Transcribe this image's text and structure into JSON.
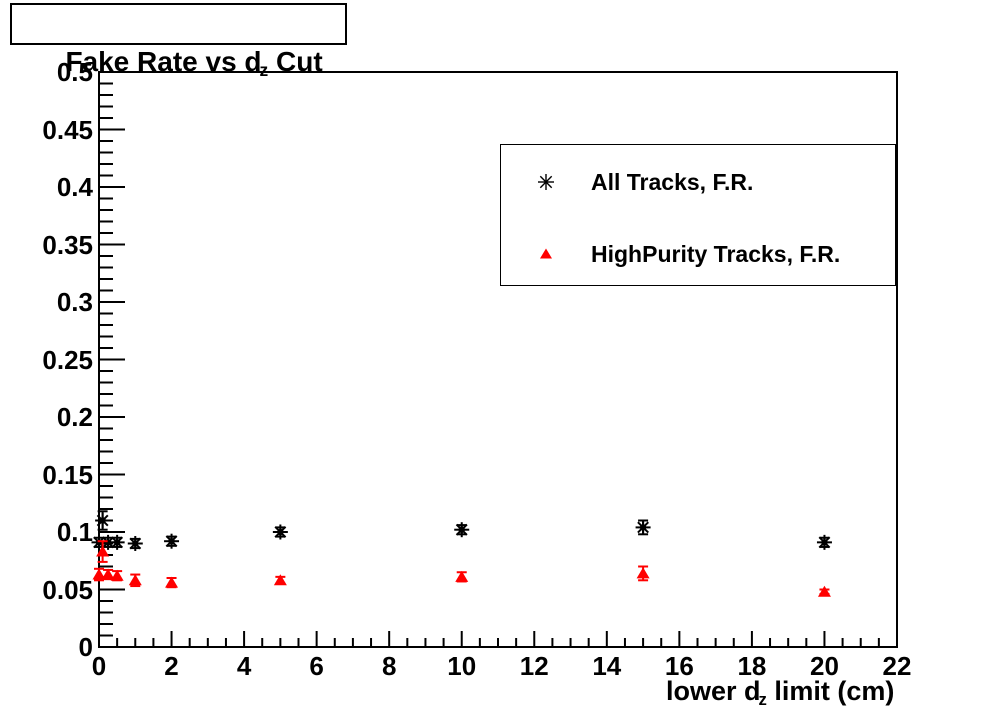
{
  "title": {
    "prefix": "Fake Rate vs d",
    "subscript": "z",
    "suffix": " Cut"
  },
  "axes": {
    "xlabel": {
      "prefix": "lower d",
      "subscript": "z",
      "suffix": " limit (cm)"
    },
    "x_ticks": [
      "0",
      "2",
      "4",
      "6",
      "8",
      "10",
      "12",
      "14",
      "16",
      "18",
      "20",
      "22"
    ],
    "y_ticks": [
      "0",
      "0.05",
      "0.1",
      "0.15",
      "0.2",
      "0.25",
      "0.3",
      "0.35",
      "0.4",
      "0.45",
      "0.5"
    ]
  },
  "legend": {
    "entries": [
      {
        "marker_icon": "asterisk-marker-icon",
        "color": "#000000",
        "label": "All Tracks, F.R."
      },
      {
        "marker_icon": "triangle-marker-icon",
        "color": "#ff0000",
        "label": "HighPurity Tracks, F.R."
      }
    ]
  },
  "colors": {
    "all_tracks": "#000000",
    "high_purity_tracks": "#ff0000",
    "frame": "#000000",
    "background": "#ffffff"
  },
  "chart_data": {
    "type": "scatter",
    "title": "Fake Rate vs d_z Cut",
    "xlabel": "lower d_z limit (cm)",
    "ylabel": "",
    "xlim": [
      0,
      22
    ],
    "ylim": [
      0,
      0.5
    ],
    "x_major_tick_step": 2,
    "x_minor_tick_step": 0.5,
    "y_major_tick_step": 0.05,
    "y_minor_tick_step": 0.01,
    "grid": false,
    "legend_position": "upper-right",
    "series": [
      {
        "name": "All Tracks, F.R.",
        "marker": "asterisk",
        "color": "#000000",
        "x": [
          0,
          0.1,
          0.25,
          0.5,
          1,
          2,
          5,
          10,
          15,
          20
        ],
        "y": [
          0.091,
          0.11,
          0.091,
          0.091,
          0.09,
          0.092,
          0.1,
          0.102,
          0.104,
          0.091
        ],
        "yerr": [
          0.004,
          0.008,
          0.004,
          0.004,
          0.004,
          0.004,
          0.004,
          0.004,
          0.006,
          0.004
        ]
      },
      {
        "name": "HighPurity Tracks, F.R.",
        "marker": "triangle",
        "color": "#ff0000",
        "x": [
          0,
          0.1,
          0.25,
          0.5,
          1,
          2,
          5,
          10,
          15,
          20
        ],
        "y": [
          0.063,
          0.083,
          0.063,
          0.062,
          0.058,
          0.056,
          0.058,
          0.061,
          0.064,
          0.048
        ],
        "yerr": [
          0.005,
          0.009,
          0.004,
          0.004,
          0.005,
          0.004,
          0.003,
          0.004,
          0.006,
          0.002
        ]
      }
    ]
  }
}
